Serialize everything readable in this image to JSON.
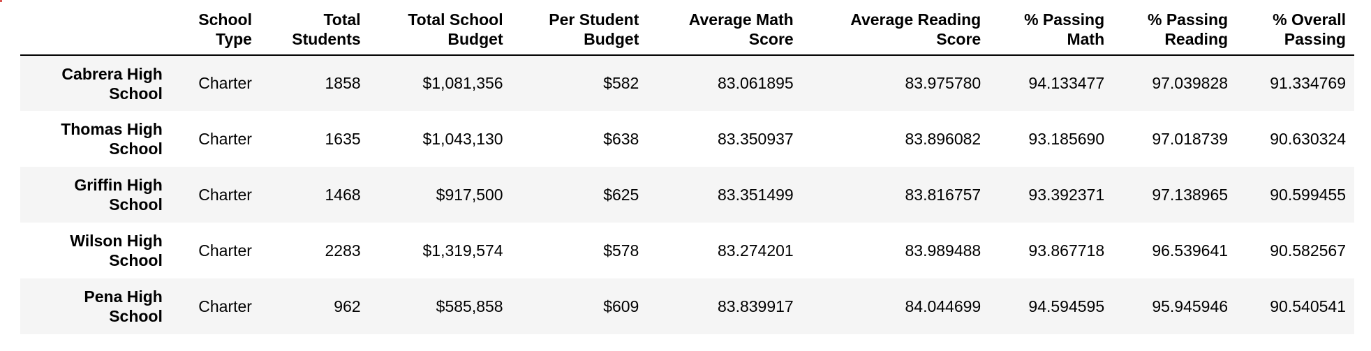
{
  "table": {
    "columns": [
      [
        "School",
        "Type"
      ],
      [
        "Total",
        "Students"
      ],
      [
        "Total School",
        "Budget"
      ],
      [
        "Per Student",
        "Budget"
      ],
      [
        "Average Math",
        "Score"
      ],
      [
        "Average Reading",
        "Score"
      ],
      [
        "% Passing",
        "Math"
      ],
      [
        "% Passing",
        "Reading"
      ],
      [
        "% Overall",
        "Passing"
      ]
    ],
    "rows": [
      {
        "name": [
          "Cabrera High",
          "School"
        ],
        "cells": [
          "Charter",
          "1858",
          "$1,081,356",
          "$582",
          "83.061895",
          "83.975780",
          "94.133477",
          "97.039828",
          "91.334769"
        ]
      },
      {
        "name": [
          "Thomas High",
          "School"
        ],
        "cells": [
          "Charter",
          "1635",
          "$1,043,130",
          "$638",
          "83.350937",
          "83.896082",
          "93.185690",
          "97.018739",
          "90.630324"
        ]
      },
      {
        "name": [
          "Griffin High",
          "School"
        ],
        "cells": [
          "Charter",
          "1468",
          "$917,500",
          "$625",
          "83.351499",
          "83.816757",
          "93.392371",
          "97.138965",
          "90.599455"
        ]
      },
      {
        "name": [
          "Wilson High",
          "School"
        ],
        "cells": [
          "Charter",
          "2283",
          "$1,319,574",
          "$578",
          "83.274201",
          "83.989488",
          "93.867718",
          "96.539641",
          "90.582567"
        ]
      },
      {
        "name": [
          "Pena High",
          "School"
        ],
        "cells": [
          "Charter",
          "962",
          "$585,858",
          "$609",
          "83.839917",
          "84.044699",
          "94.594595",
          "95.945946",
          "90.540541"
        ]
      }
    ]
  }
}
